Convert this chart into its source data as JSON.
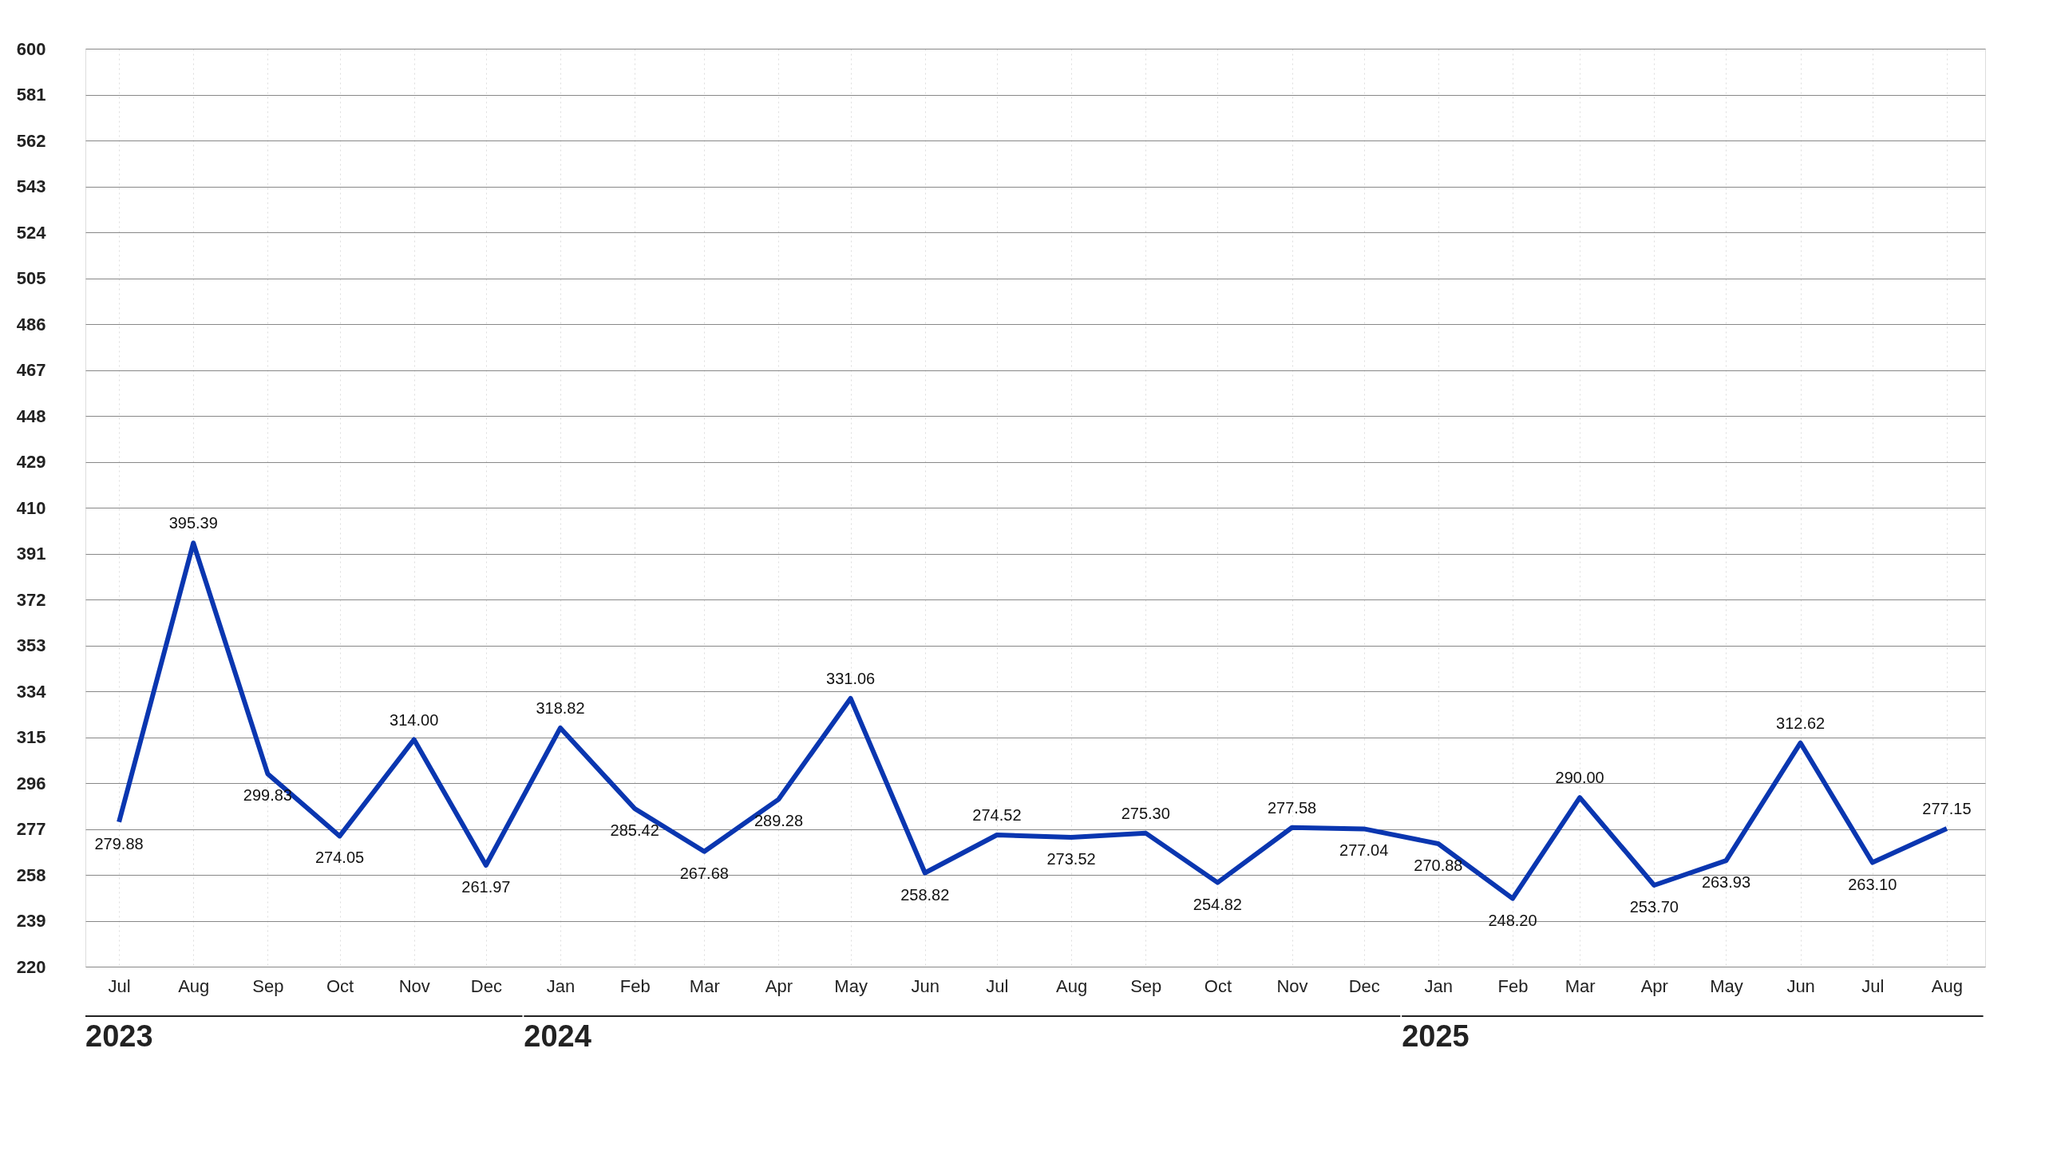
{
  "chart_data": {
    "type": "line",
    "x": [
      "2023-07",
      "2023-08",
      "2023-09",
      "2023-10",
      "2023-11",
      "2023-12",
      "2024-01",
      "2024-02",
      "2024-03",
      "2024-04",
      "2024-05",
      "2024-06",
      "2024-07",
      "2024-08",
      "2024-09",
      "2024-10",
      "2024-11",
      "2024-12",
      "2025-01",
      "2025-02",
      "2025-03",
      "2025-04",
      "2025-05",
      "2025-06",
      "2025-07",
      "2025-08"
    ],
    "series": [
      {
        "color": "#0a36b0",
        "values": [
          279.88,
          395.39,
          299.83,
          274.05,
          314.0,
          261.97,
          318.82,
          285.42,
          267.68,
          289.28,
          331.06,
          258.82,
          274.52,
          273.52,
          275.3,
          254.82,
          277.58,
          277.04,
          270.88,
          248.2,
          290.0,
          253.7,
          263.93,
          312.62,
          263.1,
          277.15
        ],
        "value_labels": [
          "279.88",
          "395.39",
          "299.83",
          "274.05",
          "314.00",
          "261.97",
          "318.82",
          "285.42",
          "267.68",
          "289.28",
          "331.06",
          "258.82",
          "274.52",
          "273.52",
          "275.30",
          "254.82",
          "277.58",
          "277.04",
          "270.88",
          "248.20",
          "290.00",
          "253.70",
          "263.93",
          "312.62",
          "263.10",
          "277.15"
        ]
      }
    ],
    "xticks": [
      {
        "value": "2023-07",
        "label": "Jul"
      },
      {
        "value": "2023-08",
        "label": "Aug"
      },
      {
        "value": "2023-09",
        "label": "Sep"
      },
      {
        "value": "2023-10",
        "label": "Oct"
      },
      {
        "value": "2023-11",
        "label": "Nov"
      },
      {
        "value": "2023-12",
        "label": "Dec"
      },
      {
        "value": "2024-01",
        "label": "Jan"
      },
      {
        "value": "2024-02",
        "label": "Feb"
      },
      {
        "value": "2024-03",
        "label": "Mar"
      },
      {
        "value": "2024-04",
        "label": "Apr"
      },
      {
        "value": "2024-05",
        "label": "May"
      },
      {
        "value": "2024-06",
        "label": "Jun"
      },
      {
        "value": "2024-07",
        "label": "Jul"
      },
      {
        "value": "2024-08",
        "label": "Aug"
      },
      {
        "value": "2024-09",
        "label": "Sep"
      },
      {
        "value": "2024-10",
        "label": "Oct"
      },
      {
        "value": "2024-11",
        "label": "Nov"
      },
      {
        "value": "2024-12",
        "label": "Dec"
      },
      {
        "value": "2025-01",
        "label": "Jan"
      },
      {
        "value": "2025-02",
        "label": "Feb"
      },
      {
        "value": "2025-03",
        "label": "Mar"
      },
      {
        "value": "2025-04",
        "label": "Apr"
      },
      {
        "value": "2025-05",
        "label": "May"
      },
      {
        "value": "2025-06",
        "label": "Jun"
      },
      {
        "value": "2025-07",
        "label": "Jul"
      },
      {
        "value": "2025-08",
        "label": "Aug"
      }
    ],
    "xlim": [
      "2023-06-17",
      "2025-08-17"
    ],
    "ylim": [
      220,
      600
    ],
    "yticks": [
      220,
      239,
      258,
      277,
      296,
      315,
      334,
      353,
      372,
      391,
      410,
      429,
      448,
      467,
      486,
      505,
      524,
      543,
      562,
      581,
      600
    ],
    "annotations": [
      "2023",
      "2024",
      "2025"
    ],
    "grid": true,
    "legend": false,
    "marker": "none",
    "line_style": "solid"
  }
}
